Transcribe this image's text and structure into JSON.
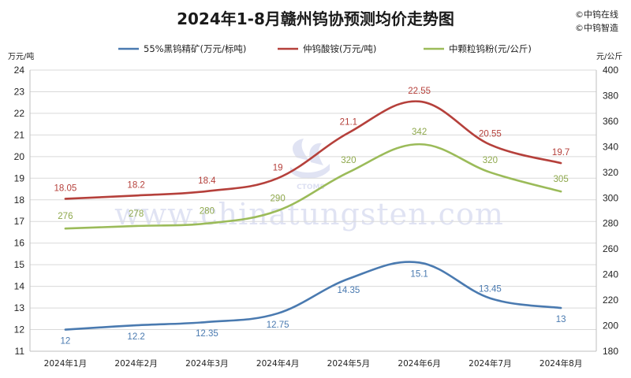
{
  "chart_data": {
    "type": "line",
    "title": "2024年1-8月赣州钨协预测均价走势图",
    "copyright": [
      "©中钨在线",
      "©中钨智造"
    ],
    "categories": [
      "2024年1月",
      "2024年2月",
      "2024年3月",
      "2024年4月",
      "2024年5月",
      "2024年6月",
      "2024年7月",
      "2024年8月"
    ],
    "left_axis": {
      "unit": "万元/吨",
      "ylim": [
        11,
        24
      ],
      "ticks": [
        11,
        12,
        13,
        14,
        15,
        16,
        17,
        18,
        19,
        20,
        21,
        22,
        23,
        24
      ]
    },
    "right_axis": {
      "unit": "元/公斤",
      "ylim": [
        180,
        400
      ],
      "ticks": [
        180,
        200,
        220,
        240,
        260,
        280,
        300,
        320,
        340,
        360,
        380,
        400
      ]
    },
    "grid": true,
    "legend_position": "top",
    "series": [
      {
        "name": "55%黑钨精矿(万元/标吨)",
        "axis": "left",
        "color": "#4a7ab0",
        "values": [
          12,
          12.2,
          12.35,
          12.75,
          14.35,
          15.1,
          13.45,
          13
        ],
        "labels": [
          "12",
          "12.2",
          "12.35",
          "12.75",
          "14.35",
          "15.1",
          "13.45",
          "13"
        ]
      },
      {
        "name": "仲钨酸铵(万元/吨)",
        "axis": "left",
        "color": "#b5403b",
        "values": [
          18.05,
          18.2,
          18.4,
          19,
          21.1,
          22.55,
          20.55,
          19.7
        ],
        "labels": [
          "18.05",
          "18.2",
          "18.4",
          "19",
          "21.1",
          "22.55",
          "20.55",
          "19.7"
        ]
      },
      {
        "name": "中颗粒钨粉(元/公斤)",
        "axis": "right",
        "color": "#9bbb59",
        "values": [
          276,
          278,
          280,
          290,
          320,
          342,
          320,
          305
        ],
        "labels": [
          "276",
          "278",
          "280",
          "290",
          "320",
          "342",
          "320",
          "305"
        ]
      }
    ]
  },
  "watermark": {
    "text": "www.chinatungsten.com",
    "logo_text": "CTOMS"
  }
}
